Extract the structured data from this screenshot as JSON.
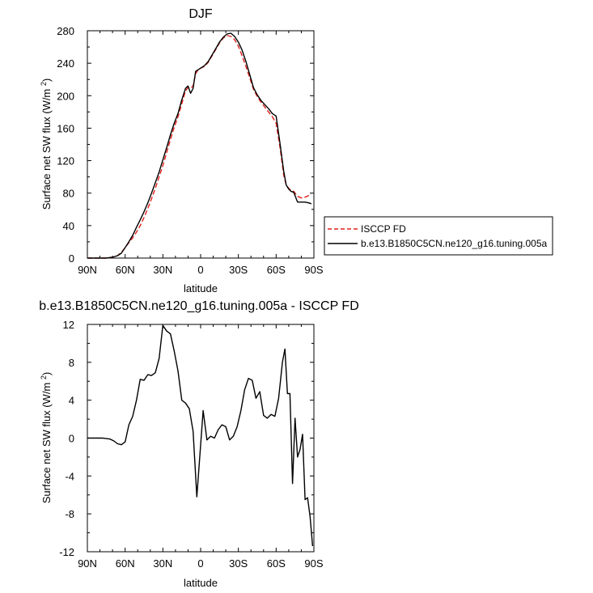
{
  "chart_data": [
    {
      "type": "line",
      "title": "DJF",
      "xlabel": "latitude",
      "ylabel": "Surface net SW flux (W/m²)",
      "xlim": [
        90,
        -90
      ],
      "ylim": [
        0,
        280
      ],
      "x_ticks": [
        90,
        60,
        30,
        0,
        -30,
        -60,
        -90
      ],
      "x_tick_labels": [
        "90N",
        "60N",
        "30N",
        "0",
        "30S",
        "60S",
        "90S"
      ],
      "y_ticks": [
        0,
        40,
        80,
        120,
        160,
        200,
        240,
        280
      ],
      "y_tick_labels": [
        "0",
        "40",
        "80",
        "120",
        "160",
        "200",
        "240",
        "280"
      ],
      "legend_position": "right",
      "series": [
        {
          "name": "ISCCP FD",
          "color": "#e0201b",
          "dash": "dashed",
          "x": [
            90,
            85,
            80,
            75,
            70,
            66,
            63,
            60,
            57,
            54,
            51,
            48,
            45,
            42,
            39,
            36,
            33,
            30,
            27,
            24,
            21,
            18,
            15,
            12,
            10,
            8,
            6,
            4,
            2,
            0,
            -3,
            -6,
            -9,
            -12,
            -15,
            -18,
            -21,
            -24,
            -27,
            -30,
            -33,
            -36,
            -39,
            -42,
            -45,
            -48,
            -51,
            -54,
            -57,
            -60,
            -63,
            -66,
            -68,
            -70,
            -72,
            -74,
            -77,
            -80,
            -83,
            -86,
            -88
          ],
          "y": [
            0,
            0,
            0,
            0,
            1,
            3,
            7,
            13,
            19,
            25,
            32,
            40,
            50,
            61,
            73,
            86,
            100,
            114,
            130,
            146,
            161,
            174,
            190,
            206,
            210,
            209,
            212,
            227,
            232,
            234,
            236,
            241,
            249,
            257,
            265,
            271,
            274,
            273,
            269,
            261,
            249,
            236,
            222,
            208,
            199,
            192,
            186,
            180,
            174,
            166,
            137,
            102,
            90,
            86,
            83,
            82,
            76,
            74,
            75,
            77,
            78
          ]
        },
        {
          "name": "b.e13.B1850C5CN.ne120_g16.tuning.005a",
          "color": "#000000",
          "dash": "solid",
          "x": [
            90,
            85,
            80,
            75,
            70,
            66,
            63,
            60,
            57,
            54,
            51,
            48,
            45,
            42,
            39,
            36,
            33,
            30,
            27,
            24,
            21,
            18,
            15,
            12,
            10,
            8,
            6,
            4,
            2,
            0,
            -3,
            -6,
            -9,
            -12,
            -15,
            -18,
            -21,
            -24,
            -27,
            -30,
            -33,
            -36,
            -39,
            -42,
            -45,
            -48,
            -51,
            -54,
            -57,
            -60,
            -63,
            -66,
            -68,
            -70,
            -72,
            -74,
            -77,
            -80,
            -83,
            -86,
            -88
          ],
          "y": [
            0,
            0,
            0,
            0,
            1,
            3,
            6,
            13,
            20,
            28,
            38,
            47,
            57,
            68,
            80,
            93,
            106,
            121,
            136,
            152,
            166,
            178,
            195,
            209,
            212,
            203,
            209,
            230,
            232,
            234,
            237,
            242,
            250,
            258,
            266,
            272,
            276,
            277,
            273,
            266,
            256,
            242,
            226,
            210,
            201,
            194,
            189,
            184,
            178,
            175,
            142,
            107,
            90,
            85,
            82,
            81,
            69,
            69,
            69,
            68,
            67
          ]
        }
      ]
    },
    {
      "type": "line",
      "title": "b.e13.B1850C5CN.ne120_g16.tuning.005a - ISCCP FD",
      "xlabel": "latitude",
      "ylabel": "Surface net SW flux (W/m²)",
      "xlim": [
        90,
        -90
      ],
      "ylim": [
        -12,
        12
      ],
      "x_ticks": [
        90,
        60,
        30,
        0,
        -30,
        -60,
        -90
      ],
      "x_tick_labels": [
        "90N",
        "60N",
        "30N",
        "0",
        "30S",
        "60S",
        "90S"
      ],
      "y_ticks": [
        -12,
        -8,
        -4,
        0,
        4,
        8,
        12
      ],
      "y_tick_labels": [
        "-12",
        "-8",
        "-4",
        "0",
        "4",
        "8",
        "12"
      ],
      "series": [
        {
          "color": "#000000",
          "dash": "solid",
          "x": [
            90,
            84,
            78,
            72,
            69,
            66,
            63,
            60,
            57,
            54,
            51,
            48,
            45,
            42,
            39,
            36,
            33,
            30,
            27,
            24,
            21,
            18,
            15,
            12,
            9,
            6,
            3,
            1,
            -2,
            -5,
            -8,
            -11,
            -14,
            -17,
            -20,
            -23,
            -26,
            -29,
            -32,
            -35,
            -38,
            -41,
            -44,
            -47,
            -50,
            -53,
            -56,
            -59,
            -62,
            -65,
            -67,
            -69,
            -71,
            -73,
            -75,
            -77,
            -79,
            -81,
            -83,
            -85,
            -87,
            -89
          ],
          "y": [
            0,
            0,
            0,
            -0.1,
            -0.3,
            -0.6,
            -0.7,
            -0.4,
            1.4,
            2.3,
            4.0,
            6.2,
            6.1,
            6.7,
            6.6,
            6.9,
            8.4,
            11.9,
            11.3,
            11.0,
            9.2,
            7.1,
            4.0,
            3.7,
            3.1,
            0.7,
            -6.2,
            -2.6,
            2.9,
            -0.2,
            0.2,
            0,
            0.9,
            1.4,
            1.2,
            -0.2,
            0.2,
            1.2,
            2.9,
            5.1,
            6.3,
            6.1,
            4.2,
            4.9,
            2.4,
            2.1,
            2.5,
            2.3,
            4.2,
            8.0,
            9.4,
            4.7,
            4.7,
            -4.8,
            2.1,
            -2.0,
            -1.2,
            0.4,
            -6.5,
            -6.3,
            -8.3,
            -11.4
          ]
        }
      ]
    }
  ]
}
